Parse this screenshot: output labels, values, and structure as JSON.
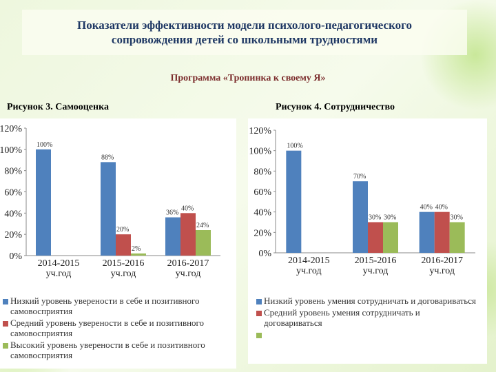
{
  "title": "Показатели эффективности модели психолого-педагогического сопровождения детей со школьными трудностями",
  "subtitle": "Программа «Тропинка к своему Я»",
  "chart_data": [
    {
      "type": "bar",
      "title": "Рисунок 3. Самооценка",
      "categories": [
        "2014-2015 уч.год",
        "2015-2016 уч.год",
        "2016-2017 уч.год"
      ],
      "ylim": [
        0,
        120
      ],
      "yticks": [
        {
          "value": 0,
          "label": "0%"
        },
        {
          "value": 20,
          "label": "20%"
        },
        {
          "value": 40,
          "label": "40%"
        },
        {
          "value": 60,
          "label": "60%"
        },
        {
          "value": 80,
          "label": "80%"
        },
        {
          "value": 100,
          "label": "100%"
        },
        {
          "value": 120,
          "label": "120%"
        }
      ],
      "series": [
        {
          "name": "Низкий уровень уверености в себе и позитивного самовосприятия",
          "color": "#4f81bd",
          "values": [
            100,
            88,
            36
          ],
          "value_labels": [
            "100%",
            "88%",
            "36%"
          ]
        },
        {
          "name": "Средний уровень уверености в себе и позитивного самовосприятия",
          "color": "#c0504d",
          "values": [
            null,
            20,
            40
          ],
          "value_labels": [
            null,
            "20%",
            "40%"
          ]
        },
        {
          "name": "Высокий уровень уверености в себе и позитивного самовосприятия",
          "color": "#9bbb59",
          "values": [
            null,
            2,
            24
          ],
          "value_labels": [
            null,
            "2%",
            "24%"
          ]
        }
      ]
    },
    {
      "type": "bar",
      "title": "Рисунок 4. Сотрудничество",
      "categories": [
        "2014-2015 уч.год",
        "2015-2016 уч.год",
        "2016-2017 уч.год"
      ],
      "ylim": [
        0,
        120
      ],
      "yticks": [
        {
          "value": 0,
          "label": "0%"
        },
        {
          "value": 20,
          "label": "20%"
        },
        {
          "value": 40,
          "label": "40%"
        },
        {
          "value": 60,
          "label": "60%"
        },
        {
          "value": 80,
          "label": "80%"
        },
        {
          "value": 100,
          "label": "100%"
        },
        {
          "value": 120,
          "label": "120%"
        }
      ],
      "series": [
        {
          "name": "Низкий уровень умения сотрудничать и договариваться",
          "color": "#4f81bd",
          "values": [
            100,
            70,
            40
          ],
          "value_labels": [
            "100%",
            "70%",
            "40%"
          ]
        },
        {
          "name": "Средний уровень умения сотрудничать и договариваться",
          "color": "#c0504d",
          "values": [
            null,
            30,
            40
          ],
          "value_labels": [
            null,
            "30%",
            "40%"
          ]
        },
        {
          "color": "#9bbb59",
          "values": [
            null,
            30,
            30
          ],
          "value_labels": [
            null,
            "30%",
            "30%"
          ]
        }
      ]
    }
  ]
}
